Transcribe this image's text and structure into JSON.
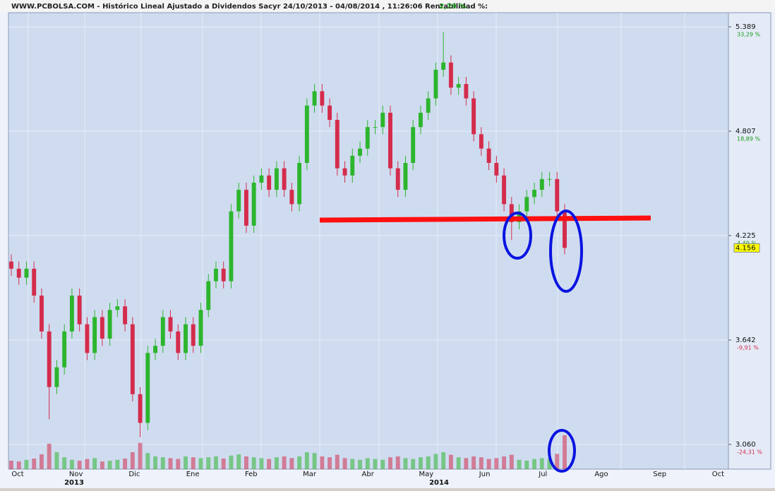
{
  "chart_data": {
    "type": "candlestick",
    "title": "WWW.PCBOLSA.COM - Histórico Lineal  Ajustado a Dividendos Sacyr 24/10/2013 - 04/08/2014 , 11:26:06 Rentabilidad %:",
    "return_label": "2,79 %",
    "open": [
      4.08,
      4.04,
      3.99,
      4.04,
      3.89,
      3.69,
      3.38,
      3.49,
      3.69,
      3.89,
      3.73,
      3.57,
      3.77,
      3.65,
      3.81,
      3.83,
      3.73,
      3.34,
      3.18,
      3.57,
      3.61,
      3.77,
      3.69,
      3.57,
      3.73,
      3.61,
      3.81,
      3.97,
      4.04,
      3.97,
      4.36,
      4.48,
      4.28,
      4.52,
      4.56,
      4.48,
      4.6,
      4.48,
      4.4,
      4.63,
      4.95,
      5.03,
      4.95,
      4.87,
      4.6,
      4.56,
      4.67,
      4.71,
      4.83,
      4.83,
      4.91,
      4.6,
      4.48,
      4.63,
      4.83,
      4.91,
      4.99,
      5.15,
      5.19,
      5.05,
      5.07,
      4.99,
      4.79,
      4.71,
      4.63,
      4.56,
      4.4,
      4.3,
      4.36,
      4.44,
      4.48,
      4.54,
      4.54,
      4.36
    ],
    "high": [
      4.12,
      4.08,
      4.08,
      4.08,
      3.93,
      3.73,
      3.53,
      3.73,
      3.93,
      3.93,
      3.77,
      3.81,
      3.81,
      3.85,
      3.87,
      3.87,
      3.77,
      3.38,
      3.61,
      3.65,
      3.81,
      3.81,
      3.73,
      3.77,
      3.77,
      3.85,
      4.01,
      4.08,
      4.08,
      4.4,
      4.52,
      4.52,
      4.56,
      4.6,
      4.6,
      4.64,
      4.64,
      4.52,
      4.67,
      4.99,
      5.07,
      5.07,
      4.99,
      4.91,
      4.64,
      4.71,
      4.75,
      4.87,
      4.87,
      4.95,
      4.95,
      4.64,
      4.67,
      4.87,
      4.95,
      5.03,
      5.19,
      5.36,
      5.23,
      5.11,
      5.11,
      5.03,
      4.83,
      4.75,
      4.67,
      4.6,
      4.44,
      4.4,
      4.48,
      4.52,
      4.58,
      4.58,
      4.58,
      4.4
    ],
    "low": [
      4.0,
      3.95,
      3.95,
      3.85,
      3.65,
      3.2,
      3.34,
      3.45,
      3.65,
      3.69,
      3.53,
      3.53,
      3.61,
      3.61,
      3.77,
      3.69,
      3.3,
      3.1,
      3.14,
      3.53,
      3.57,
      3.65,
      3.53,
      3.53,
      3.57,
      3.57,
      3.77,
      3.93,
      3.93,
      3.93,
      4.32,
      4.24,
      4.24,
      4.48,
      4.44,
      4.44,
      4.44,
      4.36,
      4.36,
      4.59,
      4.91,
      4.91,
      4.83,
      4.56,
      4.52,
      4.52,
      4.63,
      4.67,
      4.79,
      4.79,
      4.56,
      4.44,
      4.44,
      4.59,
      4.79,
      4.87,
      4.95,
      5.11,
      5.01,
      5.01,
      4.95,
      4.75,
      4.67,
      4.59,
      4.52,
      4.36,
      4.2,
      4.26,
      4.32,
      4.4,
      4.44,
      4.5,
      4.32,
      4.12
    ],
    "close": [
      4.04,
      3.99,
      4.04,
      3.89,
      3.69,
      3.38,
      3.49,
      3.69,
      3.89,
      3.73,
      3.57,
      3.77,
      3.65,
      3.81,
      3.83,
      3.73,
      3.34,
      3.18,
      3.57,
      3.61,
      3.77,
      3.69,
      3.57,
      3.73,
      3.61,
      3.81,
      3.97,
      4.04,
      3.97,
      4.36,
      4.48,
      4.28,
      4.52,
      4.56,
      4.48,
      4.6,
      4.48,
      4.4,
      4.63,
      4.95,
      5.03,
      4.95,
      4.87,
      4.6,
      4.56,
      4.67,
      4.71,
      4.83,
      4.83,
      4.91,
      4.6,
      4.48,
      4.63,
      4.83,
      4.91,
      4.99,
      5.15,
      5.19,
      5.05,
      5.07,
      4.99,
      4.79,
      4.71,
      4.63,
      4.56,
      4.4,
      4.3,
      4.36,
      4.44,
      4.48,
      4.54,
      4.54,
      4.36,
      4.156
    ],
    "volume": [
      20,
      18,
      22,
      25,
      35,
      60,
      40,
      28,
      22,
      20,
      24,
      26,
      18,
      20,
      22,
      25,
      40,
      62,
      38,
      30,
      28,
      26,
      24,
      30,
      28,
      26,
      28,
      30,
      25,
      32,
      35,
      30,
      28,
      26,
      24,
      28,
      30,
      26,
      30,
      40,
      38,
      30,
      28,
      34,
      26,
      24,
      22,
      26,
      24,
      22,
      28,
      30,
      26,
      24,
      28,
      30,
      36,
      40,
      34,
      28,
      26,
      30,
      28,
      24,
      26,
      30,
      34,
      22,
      20,
      24,
      26,
      24,
      36,
      80
    ],
    "volume_lim": [
      0,
      100
    ],
    "up_color": "#2db52d",
    "down_color": "#d42c4c",
    "ylim": [
      2.922,
      5.468
    ],
    "yticks": [
      5.389,
      4.807,
      {
        "value": 4.225,
        "label": "4.225"
      },
      3.642,
      {
        "value": 3.06,
        "label": "3.060"
      }
    ],
    "ytick_pct": [
      "33,29 %",
      "18,89 %",
      "4,49 %",
      "-9,91 %",
      "-24,31 %"
    ],
    "last": {
      "value": 4.156,
      "label": "4.156"
    },
    "months": [
      "Oct",
      "Nov",
      "Dic",
      "Ene",
      "Feb",
      "Mar",
      "Abr",
      "May",
      "Jun",
      "Jul",
      "Ago",
      "Sep",
      "Oct"
    ],
    "years": [
      "2013",
      "2014"
    ],
    "grid": true
  }
}
